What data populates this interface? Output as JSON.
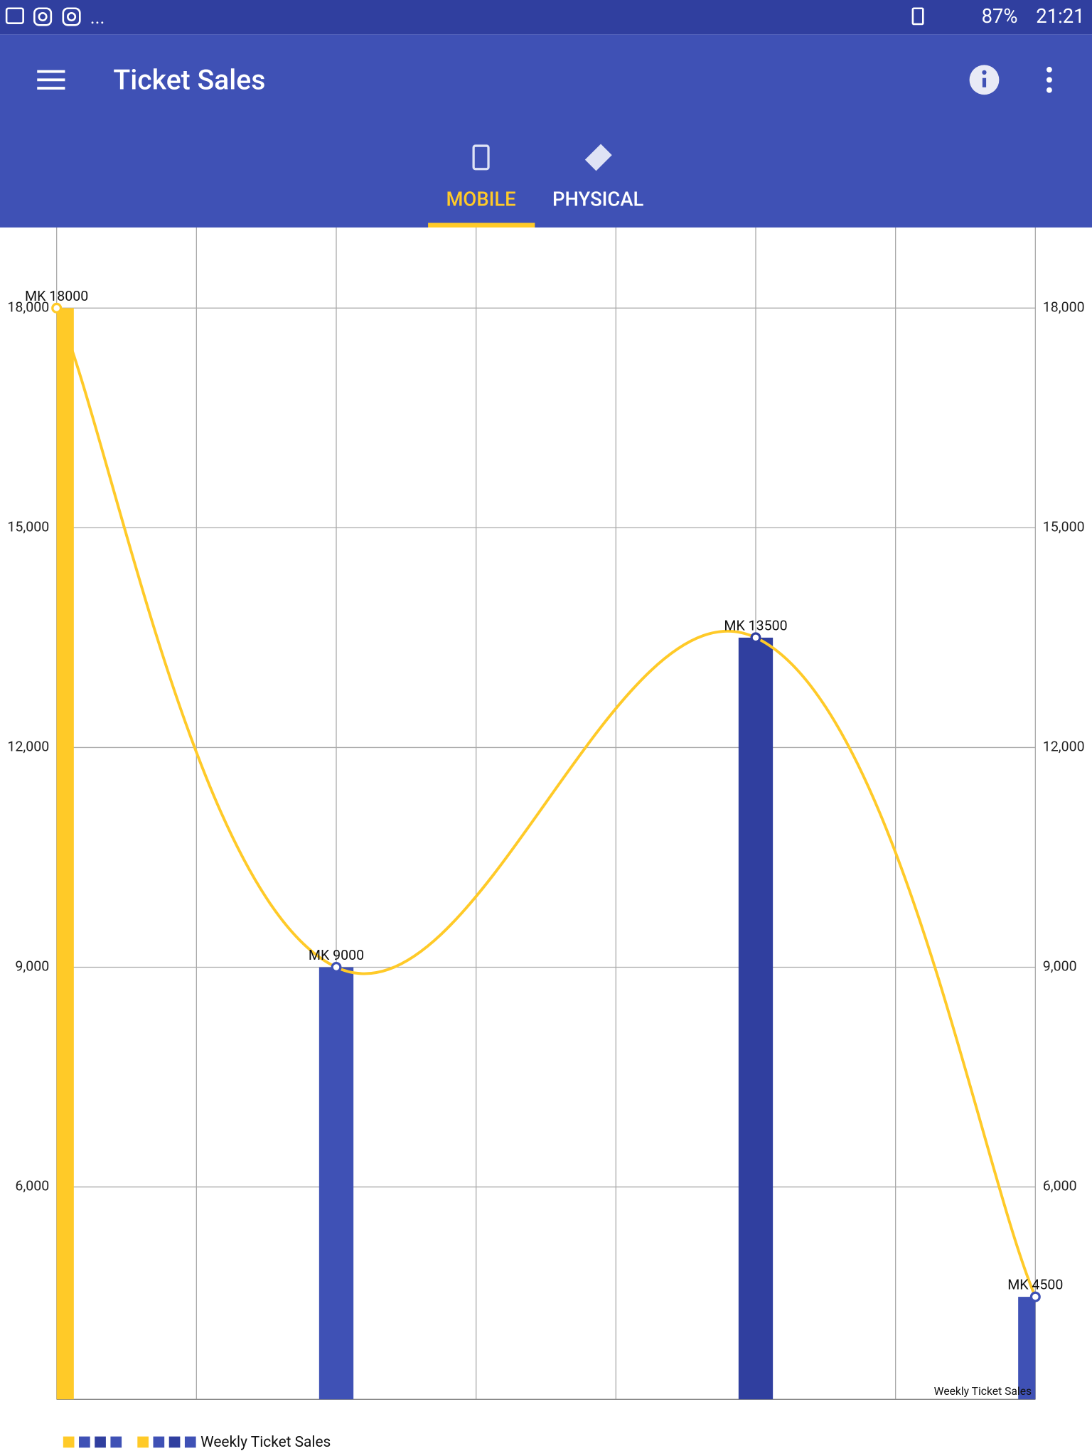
{
  "status_bar": {
    "overflow": "...",
    "battery": "87%",
    "time": "21:21"
  },
  "app_bar": {
    "title": "Ticket Sales",
    "tabs": [
      "MOBILE",
      "PHYSICAL"
    ]
  },
  "chart_data": {
    "type": "bar-line",
    "description": "Weekly Ticket Sales",
    "x": [
      0,
      2,
      5,
      7
    ],
    "xlim": [
      0,
      7
    ],
    "xticks": [
      0,
      1,
      2,
      3,
      4,
      5,
      6,
      7
    ],
    "ylim": [
      3100,
      19100
    ],
    "y2lim": [
      3100,
      19100
    ],
    "yticks": [
      {
        "value": 6000,
        "label": "6,000"
      },
      {
        "value": 9000,
        "label": "9,000"
      },
      {
        "value": 12000,
        "label": "12,000"
      },
      {
        "value": 15000,
        "label": "15,000"
      },
      {
        "value": 18000,
        "label": "18,000"
      }
    ],
    "y2ticks": [
      {
        "value": 6000,
        "label": "6,000"
      },
      {
        "value": 9000,
        "label": "9,000"
      },
      {
        "value": 12000,
        "label": "12,000"
      },
      {
        "value": 15000,
        "label": "15,000"
      },
      {
        "value": 18000,
        "label": "18,000"
      }
    ],
    "grid": true,
    "series": [
      {
        "type": "bar",
        "colors": [
          "#FFCA28",
          "#3F51B5",
          "#303F9F",
          "#3F51B5"
        ],
        "values": [
          18000,
          9000,
          13500,
          4500
        ]
      },
      {
        "type": "line",
        "name": "Weekly Ticket Sales",
        "color": "#FFCA28",
        "values": [
          18000,
          9000,
          13500,
          4500
        ],
        "value_labels": [
          "MK 18000",
          "MK 9000",
          "MK 13500",
          "MK 4500"
        ]
      }
    ]
  }
}
